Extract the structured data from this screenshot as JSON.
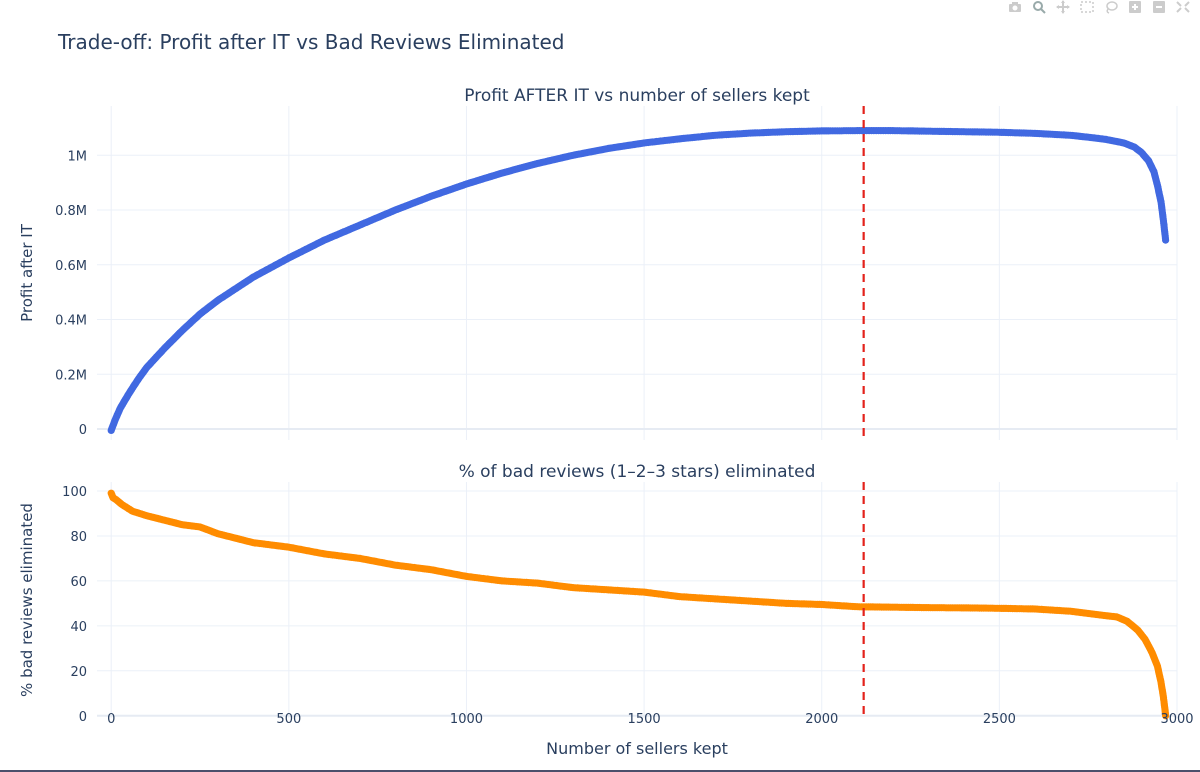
{
  "modebar": {
    "buttons": [
      "camera-icon",
      "zoom-icon",
      "pan-icon",
      "box-select-icon",
      "lasso-icon",
      "zoom-in-icon",
      "zoom-out-icon",
      "autoscale-icon"
    ]
  },
  "chart_data": {
    "title": "Trade-off: Profit after IT vs Bad Reviews Eliminated",
    "xlabel": "Number of sellers kept",
    "xlim": [
      -40,
      3000
    ],
    "xticks": [
      0,
      500,
      1000,
      1500,
      2000,
      2500,
      3000
    ],
    "xticklabels": [
      "0",
      "500",
      "1000",
      "1500",
      "2000",
      "2500",
      "3000"
    ],
    "grid": true,
    "vline": {
      "x": 2118,
      "color": "#e3221b",
      "style": "dashed"
    },
    "subplots": [
      {
        "type": "scatter",
        "title": "Profit AFTER IT vs number of sellers kept",
        "ylabel": "Profit after IT",
        "ylim": [
          -40000,
          1180000
        ],
        "yticks": [
          0,
          200000,
          400000,
          600000,
          800000,
          1000000
        ],
        "yticklabels": [
          "0",
          "0.2M",
          "0.4M",
          "0.6M",
          "0.8M",
          "1M"
        ],
        "color": "#4169e1",
        "series": [
          {
            "x": [
              0,
              10,
              25,
              50,
              75,
              100,
              150,
              200,
              250,
              300,
              400,
              500,
              600,
              700,
              800,
              900,
              1000,
              1100,
              1200,
              1300,
              1400,
              1500,
              1600,
              1700,
              1800,
              1900,
              2000,
              2100,
              2200,
              2300,
              2400,
              2500,
              2600,
              2700,
              2750,
              2800,
              2850,
              2880,
              2900,
              2920,
              2935,
              2945,
              2955,
              2962,
              2968
            ],
            "y": [
              -5000,
              30000,
              75000,
              130000,
              180000,
              225000,
              295000,
              360000,
              420000,
              470000,
              555000,
              625000,
              690000,
              745000,
              800000,
              850000,
              895000,
              935000,
              970000,
              1000000,
              1025000,
              1045000,
              1060000,
              1073000,
              1081000,
              1086000,
              1089000,
              1090000,
              1090000,
              1088000,
              1086000,
              1084000,
              1080000,
              1073000,
              1066000,
              1058000,
              1045000,
              1030000,
              1010000,
              980000,
              940000,
              890000,
              830000,
              760000,
              690000
            ]
          }
        ]
      },
      {
        "type": "scatter",
        "title": "% of bad reviews (1–2–3 stars) eliminated",
        "ylabel": "% bad reviews eliminated",
        "ylim": [
          -1,
          104
        ],
        "yticks": [
          0,
          20,
          40,
          60,
          80,
          100
        ],
        "yticklabels": [
          "0",
          "20",
          "40",
          "60",
          "80",
          "100"
        ],
        "color": "#ff8c00",
        "series": [
          {
            "x": [
              0,
              5,
              15,
              30,
              60,
              100,
              150,
              200,
              250,
              300,
              400,
              500,
              600,
              700,
              800,
              900,
              1000,
              1100,
              1200,
              1300,
              1400,
              1500,
              1600,
              1700,
              1800,
              1900,
              2000,
              2100,
              2200,
              2300,
              2400,
              2500,
              2600,
              2700,
              2750,
              2800,
              2830,
              2860,
              2890,
              2910,
              2930,
              2945,
              2955,
              2962,
              2966,
              2968
            ],
            "y": [
              99,
              97,
              96,
              94,
              91,
              89,
              87,
              85,
              84,
              81,
              77,
              75,
              72,
              70,
              67,
              65,
              62,
              60,
              59,
              57,
              56,
              55,
              53,
              52,
              51,
              50,
              49.5,
              48.5,
              48.3,
              48.1,
              48,
              47.8,
              47.5,
              46.5,
              45.5,
              44.5,
              44,
              42,
              38,
              34,
              28,
              22,
              15,
              8,
              3,
              0
            ]
          }
        ]
      }
    ]
  }
}
